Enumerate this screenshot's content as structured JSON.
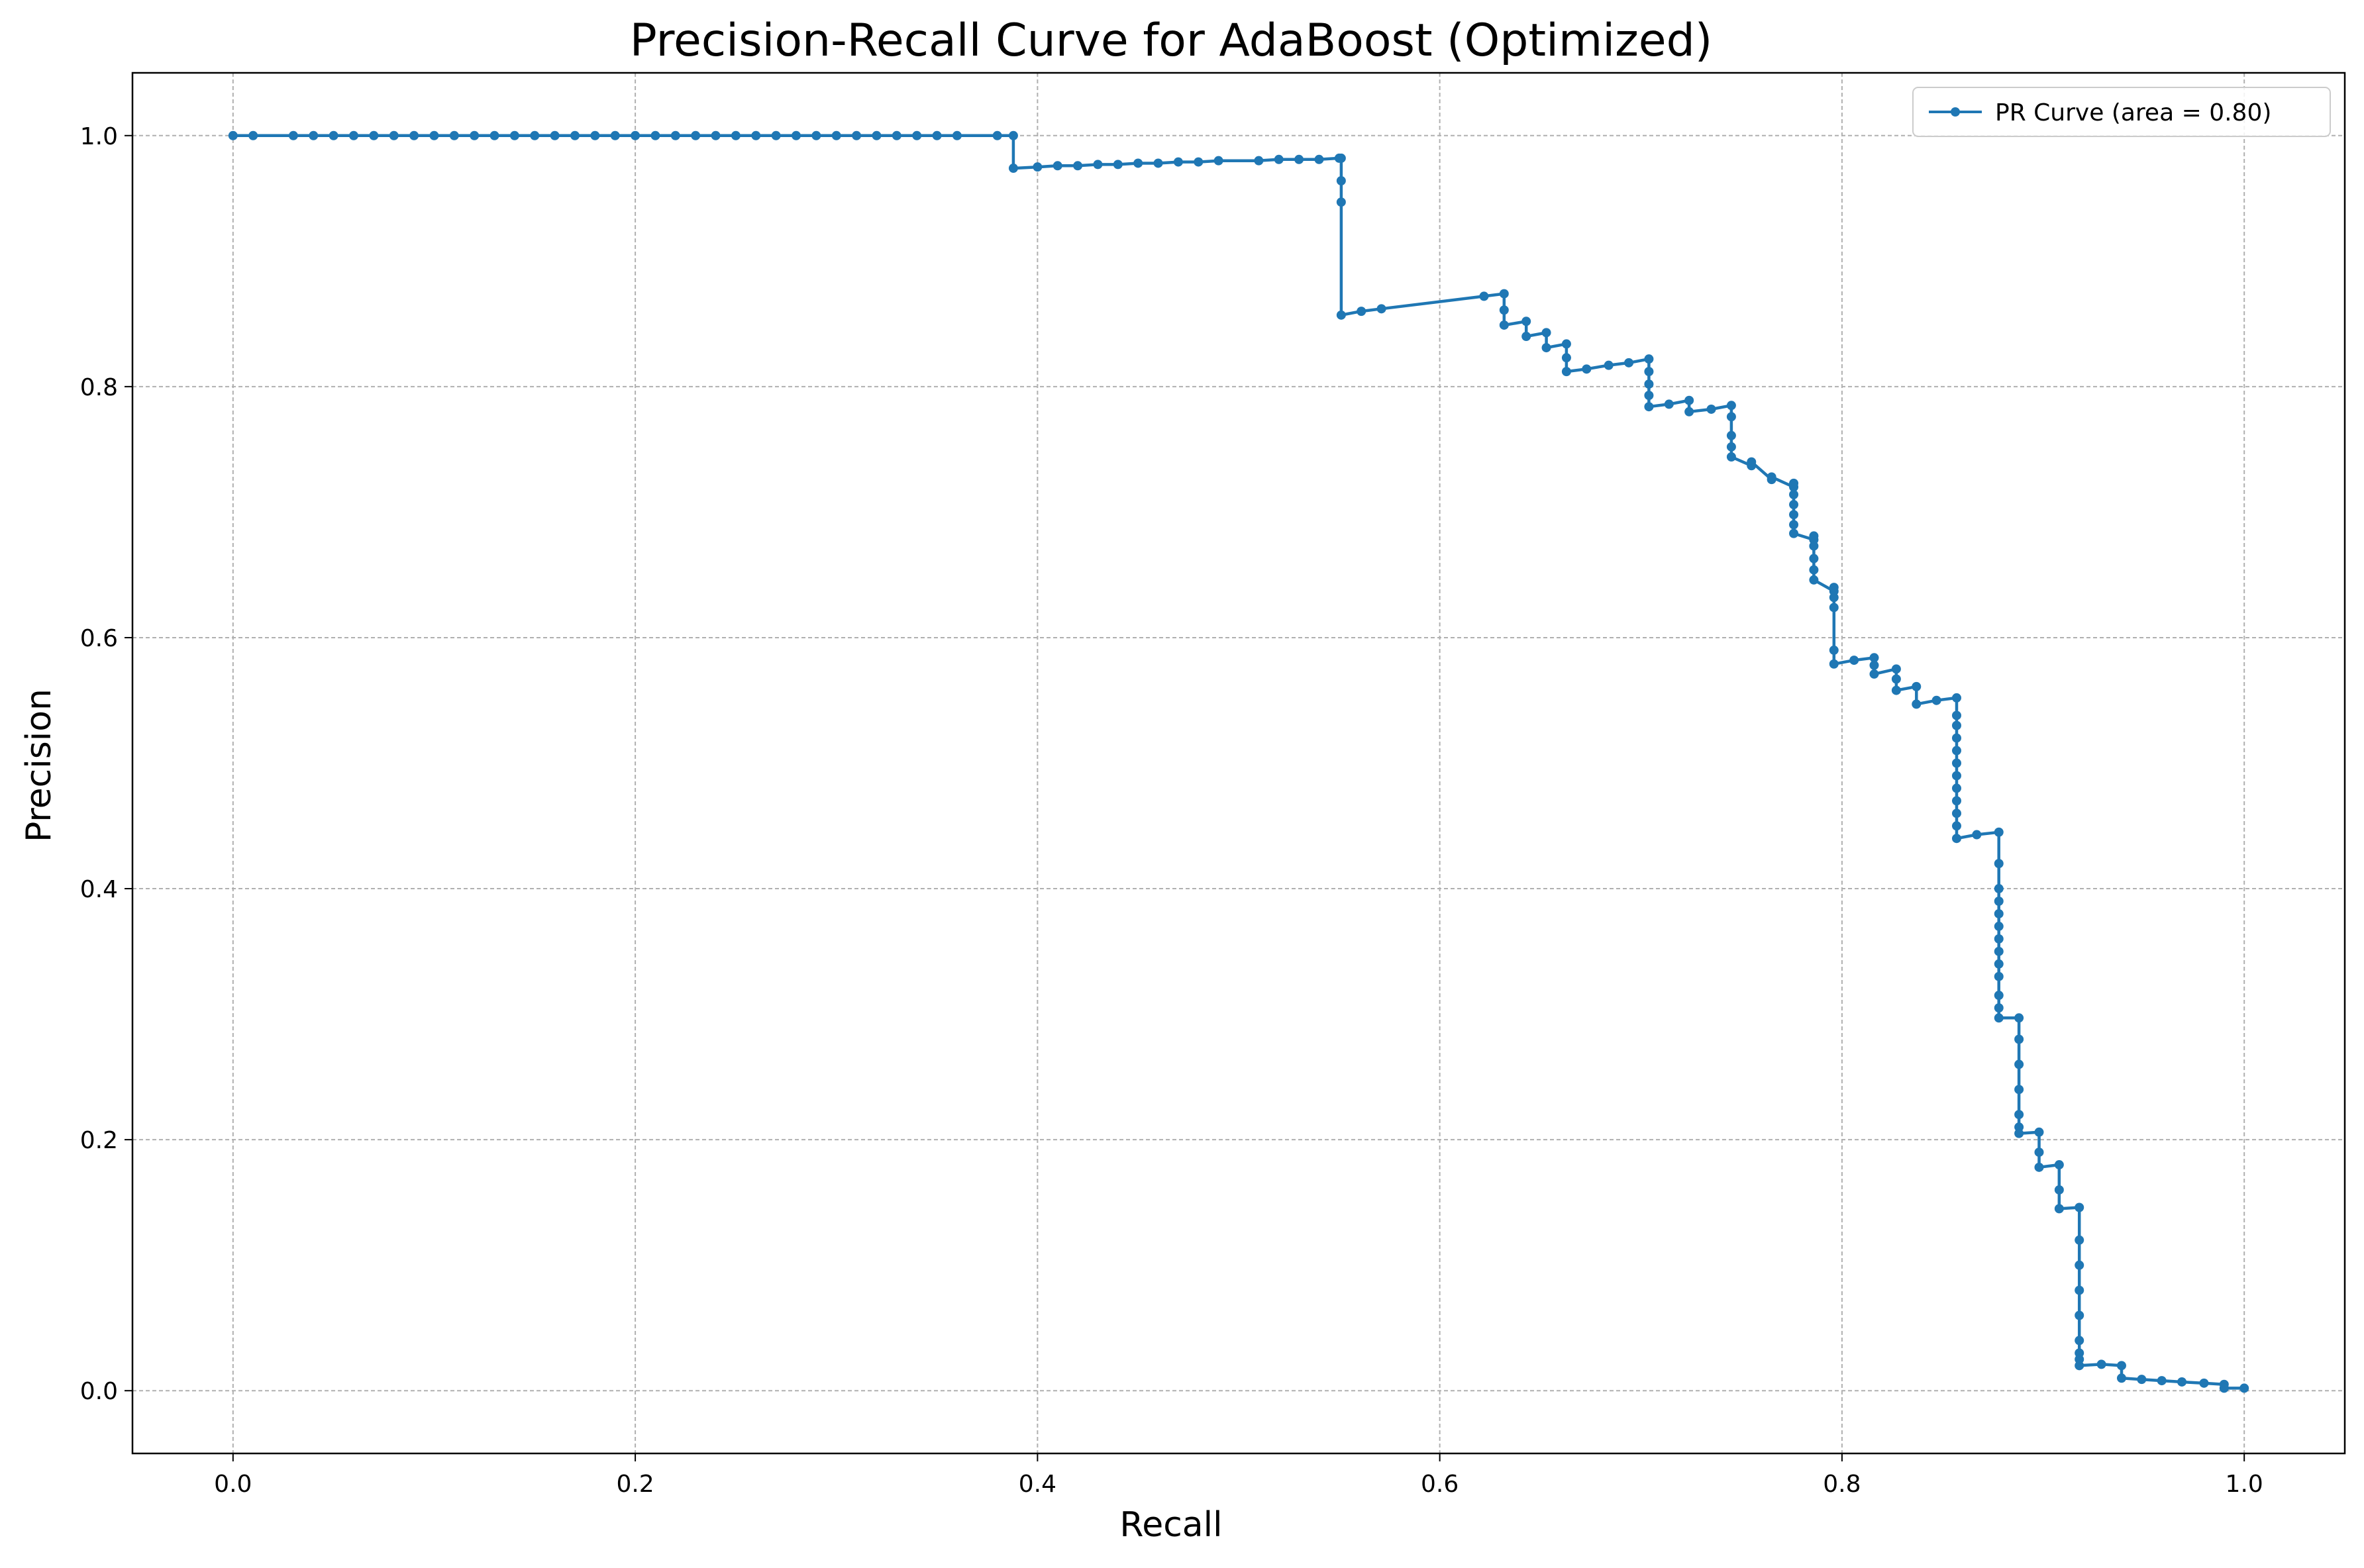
{
  "chart_data": {
    "type": "line",
    "title": "Precision-Recall Curve for AdaBoost (Optimized)",
    "xlabel": "Recall",
    "ylabel": "Precision",
    "xlim": [
      -0.05,
      1.05
    ],
    "ylim": [
      -0.05,
      1.05
    ],
    "xticks": [
      0.0,
      0.2,
      0.4,
      0.6,
      0.8,
      1.0
    ],
    "yticks": [
      0.0,
      0.2,
      0.4,
      0.6,
      0.8,
      1.0
    ],
    "xtick_labels": [
      "0.0",
      "0.2",
      "0.4",
      "0.6",
      "0.8",
      "1.0"
    ],
    "ytick_labels": [
      "0.0",
      "0.2",
      "0.4",
      "0.6",
      "0.8",
      "1.0"
    ],
    "grid": true,
    "legend_position": "top-right",
    "color": "#1f77b4",
    "series": [
      {
        "name": "PR Curve (area = 0.80)",
        "marker": "dot",
        "x": [
          0.0,
          0.01,
          0.03,
          0.04,
          0.05,
          0.06,
          0.07,
          0.08,
          0.09,
          0.1,
          0.11,
          0.12,
          0.13,
          0.14,
          0.15,
          0.16,
          0.17,
          0.18,
          0.19,
          0.2,
          0.21,
          0.22,
          0.23,
          0.24,
          0.25,
          0.26,
          0.27,
          0.28,
          0.29,
          0.3,
          0.31,
          0.32,
          0.33,
          0.34,
          0.35,
          0.36,
          0.38,
          0.388,
          0.388,
          0.4,
          0.41,
          0.42,
          0.43,
          0.44,
          0.45,
          0.46,
          0.47,
          0.48,
          0.49,
          0.51,
          0.52,
          0.53,
          0.54,
          0.55,
          0.551,
          0.551,
          0.551,
          0.551,
          0.561,
          0.571,
          0.622,
          0.632,
          0.632,
          0.632,
          0.643,
          0.643,
          0.653,
          0.653,
          0.663,
          0.663,
          0.663,
          0.673,
          0.684,
          0.694,
          0.704,
          0.704,
          0.704,
          0.704,
          0.704,
          0.714,
          0.724,
          0.724,
          0.735,
          0.745,
          0.745,
          0.745,
          0.745,
          0.745,
          0.755,
          0.755,
          0.765,
          0.765,
          0.776,
          0.776,
          0.776,
          0.776,
          0.776,
          0.776,
          0.776,
          0.786,
          0.786,
          0.786,
          0.786,
          0.786,
          0.786,
          0.796,
          0.796,
          0.796,
          0.796,
          0.796,
          0.796,
          0.806,
          0.816,
          0.816,
          0.816,
          0.827,
          0.827,
          0.827,
          0.837,
          0.837,
          0.847,
          0.857,
          0.857,
          0.857,
          0.857,
          0.857,
          0.857,
          0.857,
          0.857,
          0.857,
          0.857,
          0.857,
          0.857,
          0.867,
          0.878,
          0.878,
          0.878,
          0.878,
          0.878,
          0.878,
          0.878,
          0.878,
          0.878,
          0.878,
          0.878,
          0.878,
          0.878,
          0.888,
          0.888,
          0.888,
          0.888,
          0.888,
          0.888,
          0.888,
          0.898,
          0.898,
          0.898,
          0.908,
          0.908,
          0.908,
          0.918,
          0.918,
          0.918,
          0.918,
          0.918,
          0.918,
          0.918,
          0.918,
          0.918,
          0.929,
          0.939,
          0.939,
          0.949,
          0.959,
          0.969,
          0.98,
          0.99,
          0.99,
          1.0
        ],
        "y": [
          1.0,
          1.0,
          1.0,
          1.0,
          1.0,
          1.0,
          1.0,
          1.0,
          1.0,
          1.0,
          1.0,
          1.0,
          1.0,
          1.0,
          1.0,
          1.0,
          1.0,
          1.0,
          1.0,
          1.0,
          1.0,
          1.0,
          1.0,
          1.0,
          1.0,
          1.0,
          1.0,
          1.0,
          1.0,
          1.0,
          1.0,
          1.0,
          1.0,
          1.0,
          1.0,
          1.0,
          1.0,
          1.0,
          0.974,
          0.975,
          0.976,
          0.976,
          0.977,
          0.977,
          0.978,
          0.978,
          0.979,
          0.979,
          0.98,
          0.98,
          0.981,
          0.981,
          0.981,
          0.982,
          0.982,
          0.964,
          0.947,
          0.857,
          0.86,
          0.862,
          0.872,
          0.874,
          0.861,
          0.849,
          0.852,
          0.84,
          0.843,
          0.831,
          0.834,
          0.823,
          0.812,
          0.814,
          0.817,
          0.819,
          0.822,
          0.812,
          0.802,
          0.793,
          0.784,
          0.786,
          0.789,
          0.78,
          0.782,
          0.785,
          0.776,
          0.761,
          0.752,
          0.744,
          0.737,
          0.74,
          0.726,
          0.728,
          0.72,
          0.723,
          0.714,
          0.706,
          0.698,
          0.69,
          0.683,
          0.678,
          0.681,
          0.673,
          0.663,
          0.654,
          0.646,
          0.637,
          0.64,
          0.632,
          0.624,
          0.59,
          0.579,
          0.582,
          0.584,
          0.578,
          0.571,
          0.575,
          0.567,
          0.558,
          0.561,
          0.547,
          0.55,
          0.552,
          0.538,
          0.53,
          0.52,
          0.51,
          0.5,
          0.49,
          0.48,
          0.47,
          0.46,
          0.45,
          0.44,
          0.443,
          0.445,
          0.42,
          0.4,
          0.39,
          0.38,
          0.37,
          0.36,
          0.35,
          0.34,
          0.33,
          0.315,
          0.305,
          0.297,
          0.297,
          0.28,
          0.26,
          0.24,
          0.22,
          0.21,
          0.205,
          0.206,
          0.19,
          0.178,
          0.18,
          0.16,
          0.145,
          0.146,
          0.12,
          0.1,
          0.08,
          0.06,
          0.04,
          0.03,
          0.025,
          0.02,
          0.021,
          0.02,
          0.01,
          0.009,
          0.008,
          0.007,
          0.006,
          0.005,
          0.002,
          0.002
        ]
      }
    ]
  }
}
